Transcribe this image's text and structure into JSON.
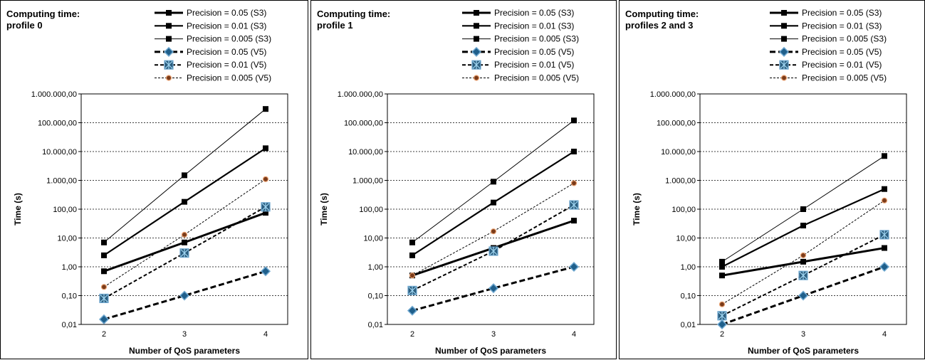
{
  "chart_data": [
    {
      "type": "line",
      "title_lines": [
        "Computing time:",
        "profile 0"
      ],
      "xlabel": "Number of QoS parameters",
      "ylabel": "Time (s)",
      "y_scale": "log",
      "ylim": [
        0.01,
        1000000
      ],
      "y_ticks": [
        0.01,
        0.1,
        1,
        10,
        100,
        1000,
        10000,
        100000,
        1000000
      ],
      "y_tick_labels": [
        "0,01",
        "0,10",
        "1,00",
        "10,00",
        "100,00",
        "1.000,00",
        "10.000,00",
        "100.000,00",
        "1.000.000,00"
      ],
      "x": [
        2,
        3,
        4
      ],
      "grid": true,
      "legend_position": "top-right",
      "series": [
        {
          "name": "Precision = 0.05 (S3)",
          "values": [
            0.7,
            7,
            75
          ]
        },
        {
          "name": "Precision = 0.01 (S3)",
          "values": [
            2.5,
            180,
            13000
          ]
        },
        {
          "name": "Precision = 0.005 (S3)",
          "values": [
            7,
            1500,
            300000
          ]
        },
        {
          "name": "Precision = 0.05 (V5)",
          "values": [
            0.015,
            0.1,
            0.7
          ]
        },
        {
          "name": "Precision = 0.01 (V5)",
          "values": [
            0.08,
            3,
            120
          ]
        },
        {
          "name": "Precision = 0.005 (V5)",
          "values": [
            0.2,
            13,
            1100
          ]
        }
      ]
    },
    {
      "type": "line",
      "title_lines": [
        "Computing time:",
        "profile 1"
      ],
      "xlabel": "Number of QoS parameters",
      "ylabel": "Time (s)",
      "y_scale": "log",
      "ylim": [
        0.01,
        1000000
      ],
      "y_ticks": [
        0.01,
        0.1,
        1,
        10,
        100,
        1000,
        10000,
        100000,
        1000000
      ],
      "y_tick_labels": [
        "0,01",
        "0,10",
        "1,00",
        "10,00",
        "100,00",
        "1.000,00",
        "10.000,00",
        "100.000,00",
        "1.000.000,00"
      ],
      "x": [
        2,
        3,
        4
      ],
      "grid": true,
      "legend_position": "top-right",
      "series": [
        {
          "name": "Precision = 0.05 (S3)",
          "values": [
            0.5,
            4.5,
            40
          ]
        },
        {
          "name": "Precision = 0.01 (S3)",
          "values": [
            2.5,
            170,
            10000
          ]
        },
        {
          "name": "Precision = 0.005 (S3)",
          "values": [
            7,
            900,
            120000
          ]
        },
        {
          "name": "Precision = 0.05 (V5)",
          "values": [
            0.03,
            0.18,
            1
          ]
        },
        {
          "name": "Precision = 0.01 (V5)",
          "values": [
            0.15,
            3.5,
            140
          ]
        },
        {
          "name": "Precision = 0.005 (V5)",
          "values": [
            0.5,
            17,
            800
          ]
        }
      ]
    },
    {
      "type": "line",
      "title_lines": [
        "Computing time:",
        "profiles 2 and 3"
      ],
      "xlabel": "Number of QoS parameters",
      "ylabel": "Time (s)",
      "y_scale": "log",
      "ylim": [
        0.01,
        1000000
      ],
      "y_ticks": [
        0.01,
        0.1,
        1,
        10,
        100,
        1000,
        10000,
        100000,
        1000000
      ],
      "y_tick_labels": [
        "0,01",
        "0,10",
        "1,00",
        "10,00",
        "100,00",
        "1.000,00",
        "10.000,00",
        "100.000,00",
        "1.000.000,00"
      ],
      "x": [
        2,
        3,
        4
      ],
      "grid": true,
      "legend_position": "top-right",
      "series": [
        {
          "name": "Precision = 0.05 (S3)",
          "values": [
            0.5,
            1.5,
            4.5
          ]
        },
        {
          "name": "Precision = 0.01 (S3)",
          "values": [
            1,
            27,
            500
          ]
        },
        {
          "name": "Precision = 0.005 (S3)",
          "values": [
            1.5,
            100,
            7000
          ]
        },
        {
          "name": "Precision = 0.05 (V5)",
          "values": [
            0.01,
            0.1,
            1
          ]
        },
        {
          "name": "Precision = 0.01 (V5)",
          "values": [
            0.02,
            0.5,
            13
          ]
        },
        {
          "name": "Precision = 0.005 (V5)",
          "values": [
            0.05,
            2.5,
            200
          ]
        }
      ]
    }
  ]
}
